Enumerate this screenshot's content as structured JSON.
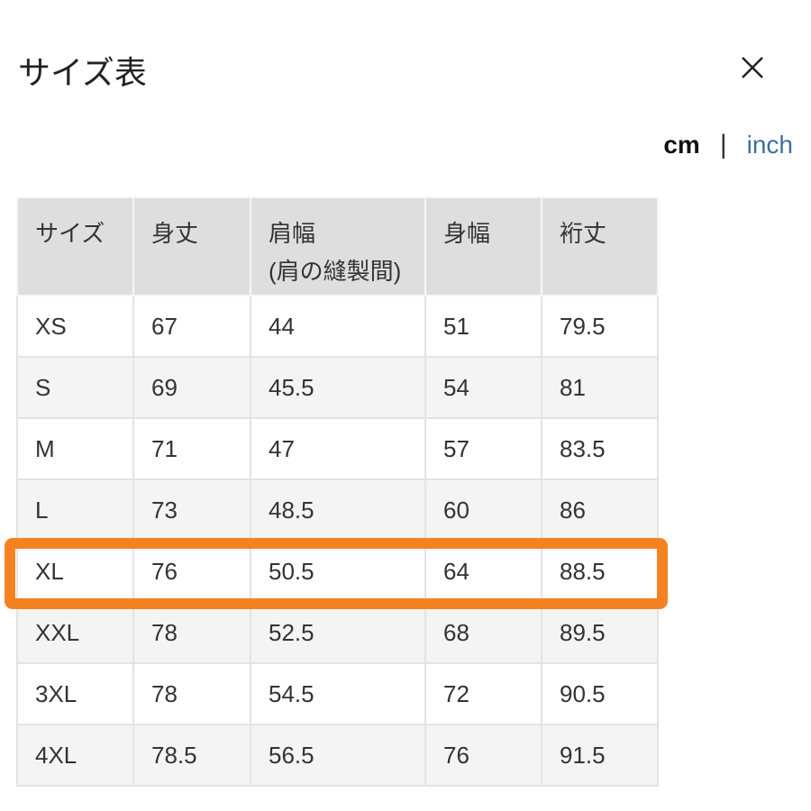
{
  "header": {
    "title": "サイズ表",
    "close_icon": "close-icon"
  },
  "units": {
    "active": "cm",
    "separator": "|",
    "inactive": "inch"
  },
  "table": {
    "columns": [
      "サイズ",
      "身丈",
      "肩幅",
      "身幅",
      "裄丈"
    ],
    "column_sub": [
      "",
      "",
      "(肩の縫製間)",
      "",
      ""
    ],
    "rows": [
      [
        "XS",
        "67",
        "44",
        "51",
        "79.5"
      ],
      [
        "S",
        "69",
        "45.5",
        "54",
        "81"
      ],
      [
        "M",
        "71",
        "47",
        "57",
        "83.5"
      ],
      [
        "L",
        "73",
        "48.5",
        "60",
        "86"
      ],
      [
        "XL",
        "76",
        "50.5",
        "64",
        "88.5"
      ],
      [
        "XXL",
        "78",
        "52.5",
        "68",
        "89.5"
      ],
      [
        "3XL",
        "78",
        "54.5",
        "72",
        "90.5"
      ],
      [
        "4XL",
        "78.5",
        "56.5",
        "76",
        "91.5"
      ]
    ],
    "highlighted_row": "XL",
    "highlight_color": "#f58220"
  }
}
